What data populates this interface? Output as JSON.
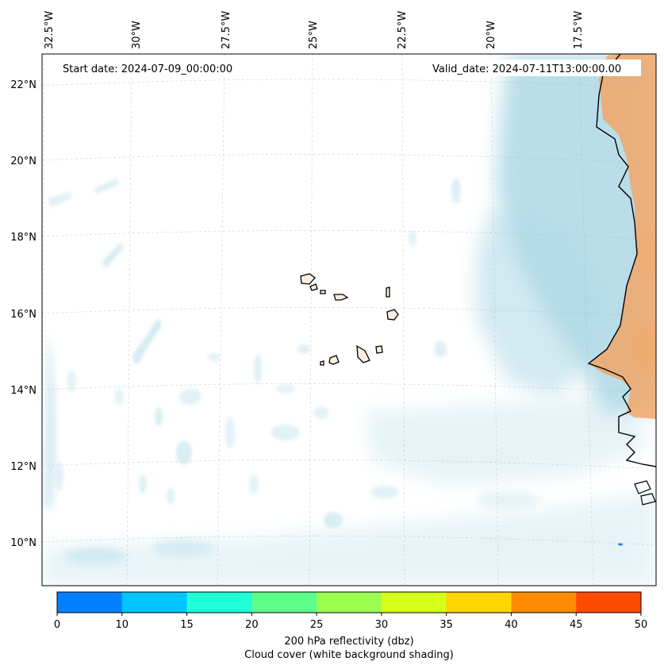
{
  "header": {
    "start_date": "Start date: 2024-07-09_00:00:00",
    "valid_date": "Valid_date: 2024-07-11T13:00:00.00"
  },
  "map": {
    "lon_labels": [
      "32.5°W",
      "30°W",
      "27.5°W",
      "25°W",
      "22.5°W",
      "20°W",
      "17.5°W"
    ],
    "lat_labels": [
      "22°N",
      "20°N",
      "18°N",
      "16°N",
      "14°N",
      "12°N",
      "10°N"
    ],
    "colors": {
      "cloud": "#add8e6",
      "land_warm": "#f4a460",
      "coastline": "#000000",
      "gridline": "#b0b0b0"
    },
    "icons": [
      "coastline-shape",
      "island-shape"
    ]
  },
  "colorbar": {
    "ticks": [
      "0",
      "10",
      "15",
      "20",
      "25",
      "30",
      "35",
      "40",
      "45",
      "50"
    ],
    "colors": [
      "#0080ff",
      "#00c4ff",
      "#20ffd8",
      "#5cff8a",
      "#9cff50",
      "#d6ff1c",
      "#ffd500",
      "#ff8c00",
      "#ff4b00"
    ],
    "label": "200 hPa reflectivity (dbz)",
    "sublabel": "Cloud cover (white background shading)"
  }
}
